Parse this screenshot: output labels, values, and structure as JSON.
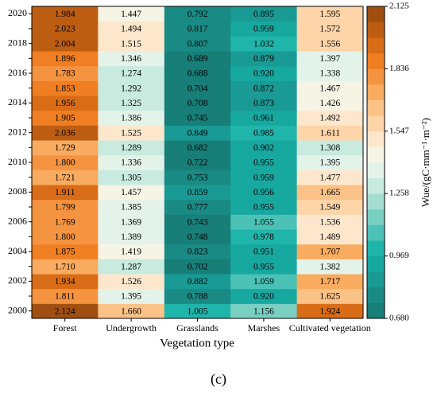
{
  "chart_data": {
    "type": "heatmap",
    "x_label": "Vegetation type",
    "colorbar_label": "Wue/(gC·mm⁻¹·m⁻²)",
    "caption": "(c)",
    "x_categories": [
      "Forest",
      "Undergrowth",
      "Grasslands",
      "Marshes",
      "Cultivated vegetation"
    ],
    "y_categories": [
      "2000",
      null,
      "2002",
      null,
      "2004",
      null,
      "2006",
      null,
      "2008",
      null,
      "2010",
      null,
      "2012",
      null,
      "2014",
      null,
      "2016",
      null,
      "2018",
      null,
      "2020"
    ],
    "values": [
      [
        2.124,
        1.66,
        1.005,
        1.156,
        1.924
      ],
      [
        1.811,
        1.395,
        0.788,
        0.92,
        1.625
      ],
      [
        1.934,
        1.526,
        0.882,
        1.059,
        1.717
      ],
      [
        1.71,
        1.287,
        0.702,
        0.955,
        1.382
      ],
      [
        1.875,
        1.419,
        0.823,
        0.951,
        1.707
      ],
      [
        1.8,
        1.389,
        0.748,
        0.978,
        1.489
      ],
      [
        1.769,
        1.369,
        0.743,
        1.055,
        1.536
      ],
      [
        1.799,
        1.385,
        0.777,
        0.955,
        1.549
      ],
      [
        1.911,
        1.457,
        0.859,
        0.956,
        1.665
      ],
      [
        1.721,
        1.305,
        0.753,
        0.959,
        1.477
      ],
      [
        1.8,
        1.336,
        0.722,
        0.955,
        1.395
      ],
      [
        1.729,
        1.289,
        0.682,
        0.902,
        1.308
      ],
      [
        2.036,
        1.525,
        0.849,
        0.985,
        1.611
      ],
      [
        1.905,
        1.386,
        0.745,
        0.961,
        1.492
      ],
      [
        1.956,
        1.325,
        0.708,
        0.873,
        1.426
      ],
      [
        1.853,
        1.292,
        0.704,
        0.872,
        1.467
      ],
      [
        1.783,
        1.274,
        0.688,
        0.92,
        1.338
      ],
      [
        1.896,
        1.346,
        0.689,
        0.879,
        1.397
      ],
      [
        2.004,
        1.515,
        0.807,
        1.032,
        1.556
      ],
      [
        2.023,
        1.494,
        0.817,
        0.959,
        1.572
      ],
      [
        1.984,
        1.447,
        0.792,
        0.895,
        1.595
      ]
    ],
    "value_labels": [
      [
        "2.124",
        "1.660",
        "1.005",
        "1.156",
        "1.924"
      ],
      [
        "1.811",
        "1.395",
        "0.788",
        "0.920",
        "1.625"
      ],
      [
        "1.934",
        "1.526",
        "0.882",
        "1.059",
        "1.717"
      ],
      [
        "1.710",
        "1.287",
        "0.702",
        "0.955",
        "1.382"
      ],
      [
        "1.875",
        "1.419",
        "0.823",
        "0.951",
        "1.707"
      ],
      [
        "1.800",
        "1.389",
        "0.748",
        "0.978",
        "1.489"
      ],
      [
        "1.769",
        "1.369",
        "0.743",
        "1.055",
        "1.536"
      ],
      [
        "1.799",
        "1.385",
        "0.777",
        "0.955",
        "1.549"
      ],
      [
        "1.911",
        "1.457",
        "0.859",
        "0.956",
        "1.665"
      ],
      [
        "1.721",
        "1.305",
        "0.753",
        "0.959",
        "1.477"
      ],
      [
        "1.800",
        "1.336",
        "0.722",
        "0.955",
        "1.395"
      ],
      [
        "1.729",
        "1.289",
        "0.682",
        "0.902",
        "1.308"
      ],
      [
        "2.036",
        "1.525",
        "0.849",
        "0.985",
        "1.611"
      ],
      [
        "1.905",
        "1.386",
        "0.745",
        "0.961",
        "1.492"
      ],
      [
        "1.956",
        "1.325",
        "0.708",
        "0.873",
        "1.426"
      ],
      [
        "1.853",
        "1.292",
        "0.704",
        "0.872",
        "1.467"
      ],
      [
        "1.783",
        "1.274",
        "0.688",
        "0.920",
        "1.338"
      ],
      [
        "1.896",
        "1.346",
        "0.689",
        "0.879",
        "1.397"
      ],
      [
        "2.004",
        "1.515",
        "0.807",
        "1.032",
        "1.556"
      ],
      [
        "2.023",
        "1.494",
        "0.817",
        "0.959",
        "1.572"
      ],
      [
        "1.984",
        "1.447",
        "0.792",
        "0.895",
        "1.595"
      ]
    ],
    "clim": [
      0.68,
      2.125
    ],
    "cticks": [
      {
        "value": 0.68,
        "label": "0.680"
      },
      0.969,
      1.258,
      1.547,
      1.836,
      2.125
    ],
    "colormap": [
      "#177e78",
      "#1a8a84",
      "#199a94",
      "#17a8a0",
      "#20b5ab",
      "#4cc2b6",
      "#79d0c2",
      "#a4ddd0",
      "#c8eadf",
      "#e4f3ea",
      "#f6f4e4",
      "#fde7cc",
      "#fdd5a8",
      "#fbc287",
      "#f9ab60",
      "#f59440",
      "#ef7f22",
      "#d96c16",
      "#bd5d12",
      "#a04f10"
    ]
  }
}
